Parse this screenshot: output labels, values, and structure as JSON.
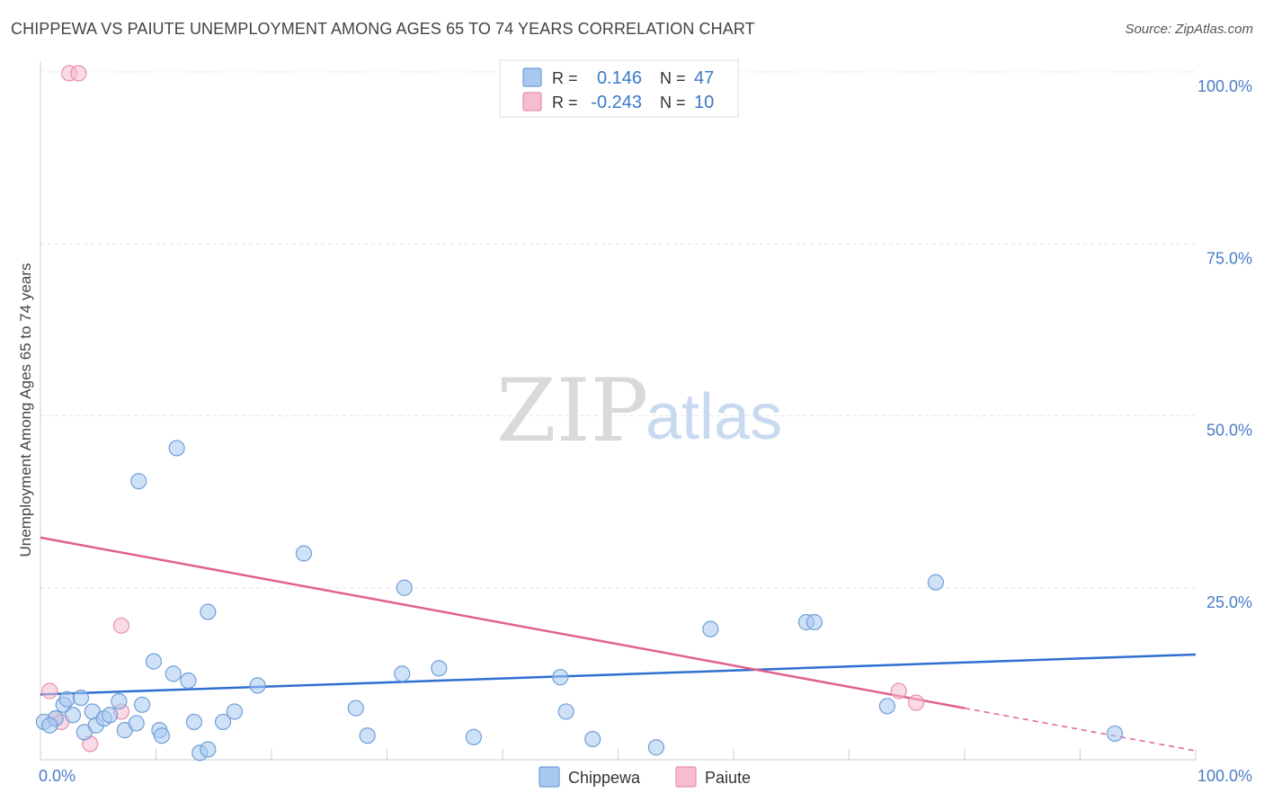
{
  "header": {
    "title": "CHIPPEWA VS PAIUTE UNEMPLOYMENT AMONG AGES 65 TO 74 YEARS CORRELATION CHART",
    "source": "Source: ZipAtlas.com"
  },
  "watermark": {
    "zip": "ZIP",
    "atlas": "atlas"
  },
  "colors": {
    "chippewa_fill": "#a8c8f0",
    "chippewa_stroke": "#6f9fd8",
    "chippewa_line": "#2f6fd0",
    "paiute_fill": "#f6bcd0",
    "paiute_stroke": "#e890ae",
    "paiute_line": "#e0608e",
    "grid": "#e3e3e3",
    "axis_text": "#4a7cc7"
  },
  "legend": {
    "rows": [
      {
        "r_label": "R =",
        "r_value": "0.146",
        "n_label": "N =",
        "n_value": "47"
      },
      {
        "r_label": "R =",
        "r_value": "-0.243",
        "n_label": "N =",
        "n_value": "10"
      }
    ]
  },
  "bottom_legend": {
    "chippewa": "Chippewa",
    "paiute": "Paiute"
  },
  "chart_data": {
    "type": "scatter",
    "title": "CHIPPEWA VS PAIUTE UNEMPLOYMENT AMONG AGES 65 TO 74 YEARS CORRELATION CHART",
    "xlabel": "",
    "ylabel": "Unemployment Among Ages 65 to 74 years",
    "xlim": [
      0,
      100
    ],
    "ylim": [
      0,
      100
    ],
    "x_tick_labels": [
      "0.0%",
      "100.0%"
    ],
    "y_ticks": [
      25,
      50,
      75,
      100
    ],
    "y_tick_labels": [
      "25.0%",
      "50.0%",
      "75.0%",
      "100.0%"
    ],
    "grid": true,
    "series": [
      {
        "name": "Chippewa",
        "r": 0.146,
        "n": 47,
        "trend": {
          "x": [
            0,
            100
          ],
          "y": [
            9.5,
            15.3
          ]
        },
        "points": [
          [
            0.3,
            5.5
          ],
          [
            1.3,
            6.0
          ],
          [
            2.0,
            8.0
          ],
          [
            2.3,
            8.8
          ],
          [
            2.8,
            6.5
          ],
          [
            3.5,
            9.0
          ],
          [
            3.8,
            4.0
          ],
          [
            4.5,
            7.0
          ],
          [
            4.8,
            5.0
          ],
          [
            5.5,
            6.0
          ],
          [
            6.0,
            6.5
          ],
          [
            6.8,
            8.5
          ],
          [
            7.3,
            4.3
          ],
          [
            8.3,
            5.3
          ],
          [
            8.8,
            8.0
          ],
          [
            8.5,
            40.5
          ],
          [
            9.8,
            14.3
          ],
          [
            10.3,
            4.3
          ],
          [
            10.5,
            3.5
          ],
          [
            11.8,
            45.3
          ],
          [
            11.5,
            12.5
          ],
          [
            12.8,
            11.5
          ],
          [
            13.3,
            5.5
          ],
          [
            13.8,
            1.0
          ],
          [
            14.5,
            1.5
          ],
          [
            14.5,
            21.5
          ],
          [
            15.8,
            5.5
          ],
          [
            16.8,
            7.0
          ],
          [
            18.8,
            10.8
          ],
          [
            22.8,
            30.0
          ],
          [
            27.3,
            7.5
          ],
          [
            28.3,
            3.5
          ],
          [
            31.3,
            12.5
          ],
          [
            31.5,
            25.0
          ],
          [
            34.5,
            13.3
          ],
          [
            37.5,
            3.3
          ],
          [
            45.0,
            12.0
          ],
          [
            45.5,
            7.0
          ],
          [
            47.8,
            3.0
          ],
          [
            53.3,
            1.8
          ],
          [
            58.0,
            19.0
          ],
          [
            66.3,
            20.0
          ],
          [
            67.0,
            20.0
          ],
          [
            73.3,
            7.8
          ],
          [
            77.5,
            25.8
          ],
          [
            93.0,
            3.8
          ],
          [
            0.8,
            5.0
          ]
        ]
      },
      {
        "name": "Paiute",
        "r": -0.243,
        "n": 10,
        "trend": {
          "x": [
            0,
            80
          ],
          "y": [
            32.3,
            7.5
          ]
        },
        "trend_extension": {
          "x": [
            80,
            100
          ],
          "y": [
            7.5,
            1.3
          ]
        },
        "points": [
          [
            2.5,
            99.8
          ],
          [
            3.3,
            99.8
          ],
          [
            0.8,
            10.0
          ],
          [
            1.3,
            6.0
          ],
          [
            1.8,
            5.5
          ],
          [
            4.3,
            2.3
          ],
          [
            7.0,
            19.5
          ],
          [
            7.0,
            7.0
          ],
          [
            74.3,
            10.0
          ],
          [
            75.8,
            8.3
          ]
        ]
      }
    ]
  }
}
